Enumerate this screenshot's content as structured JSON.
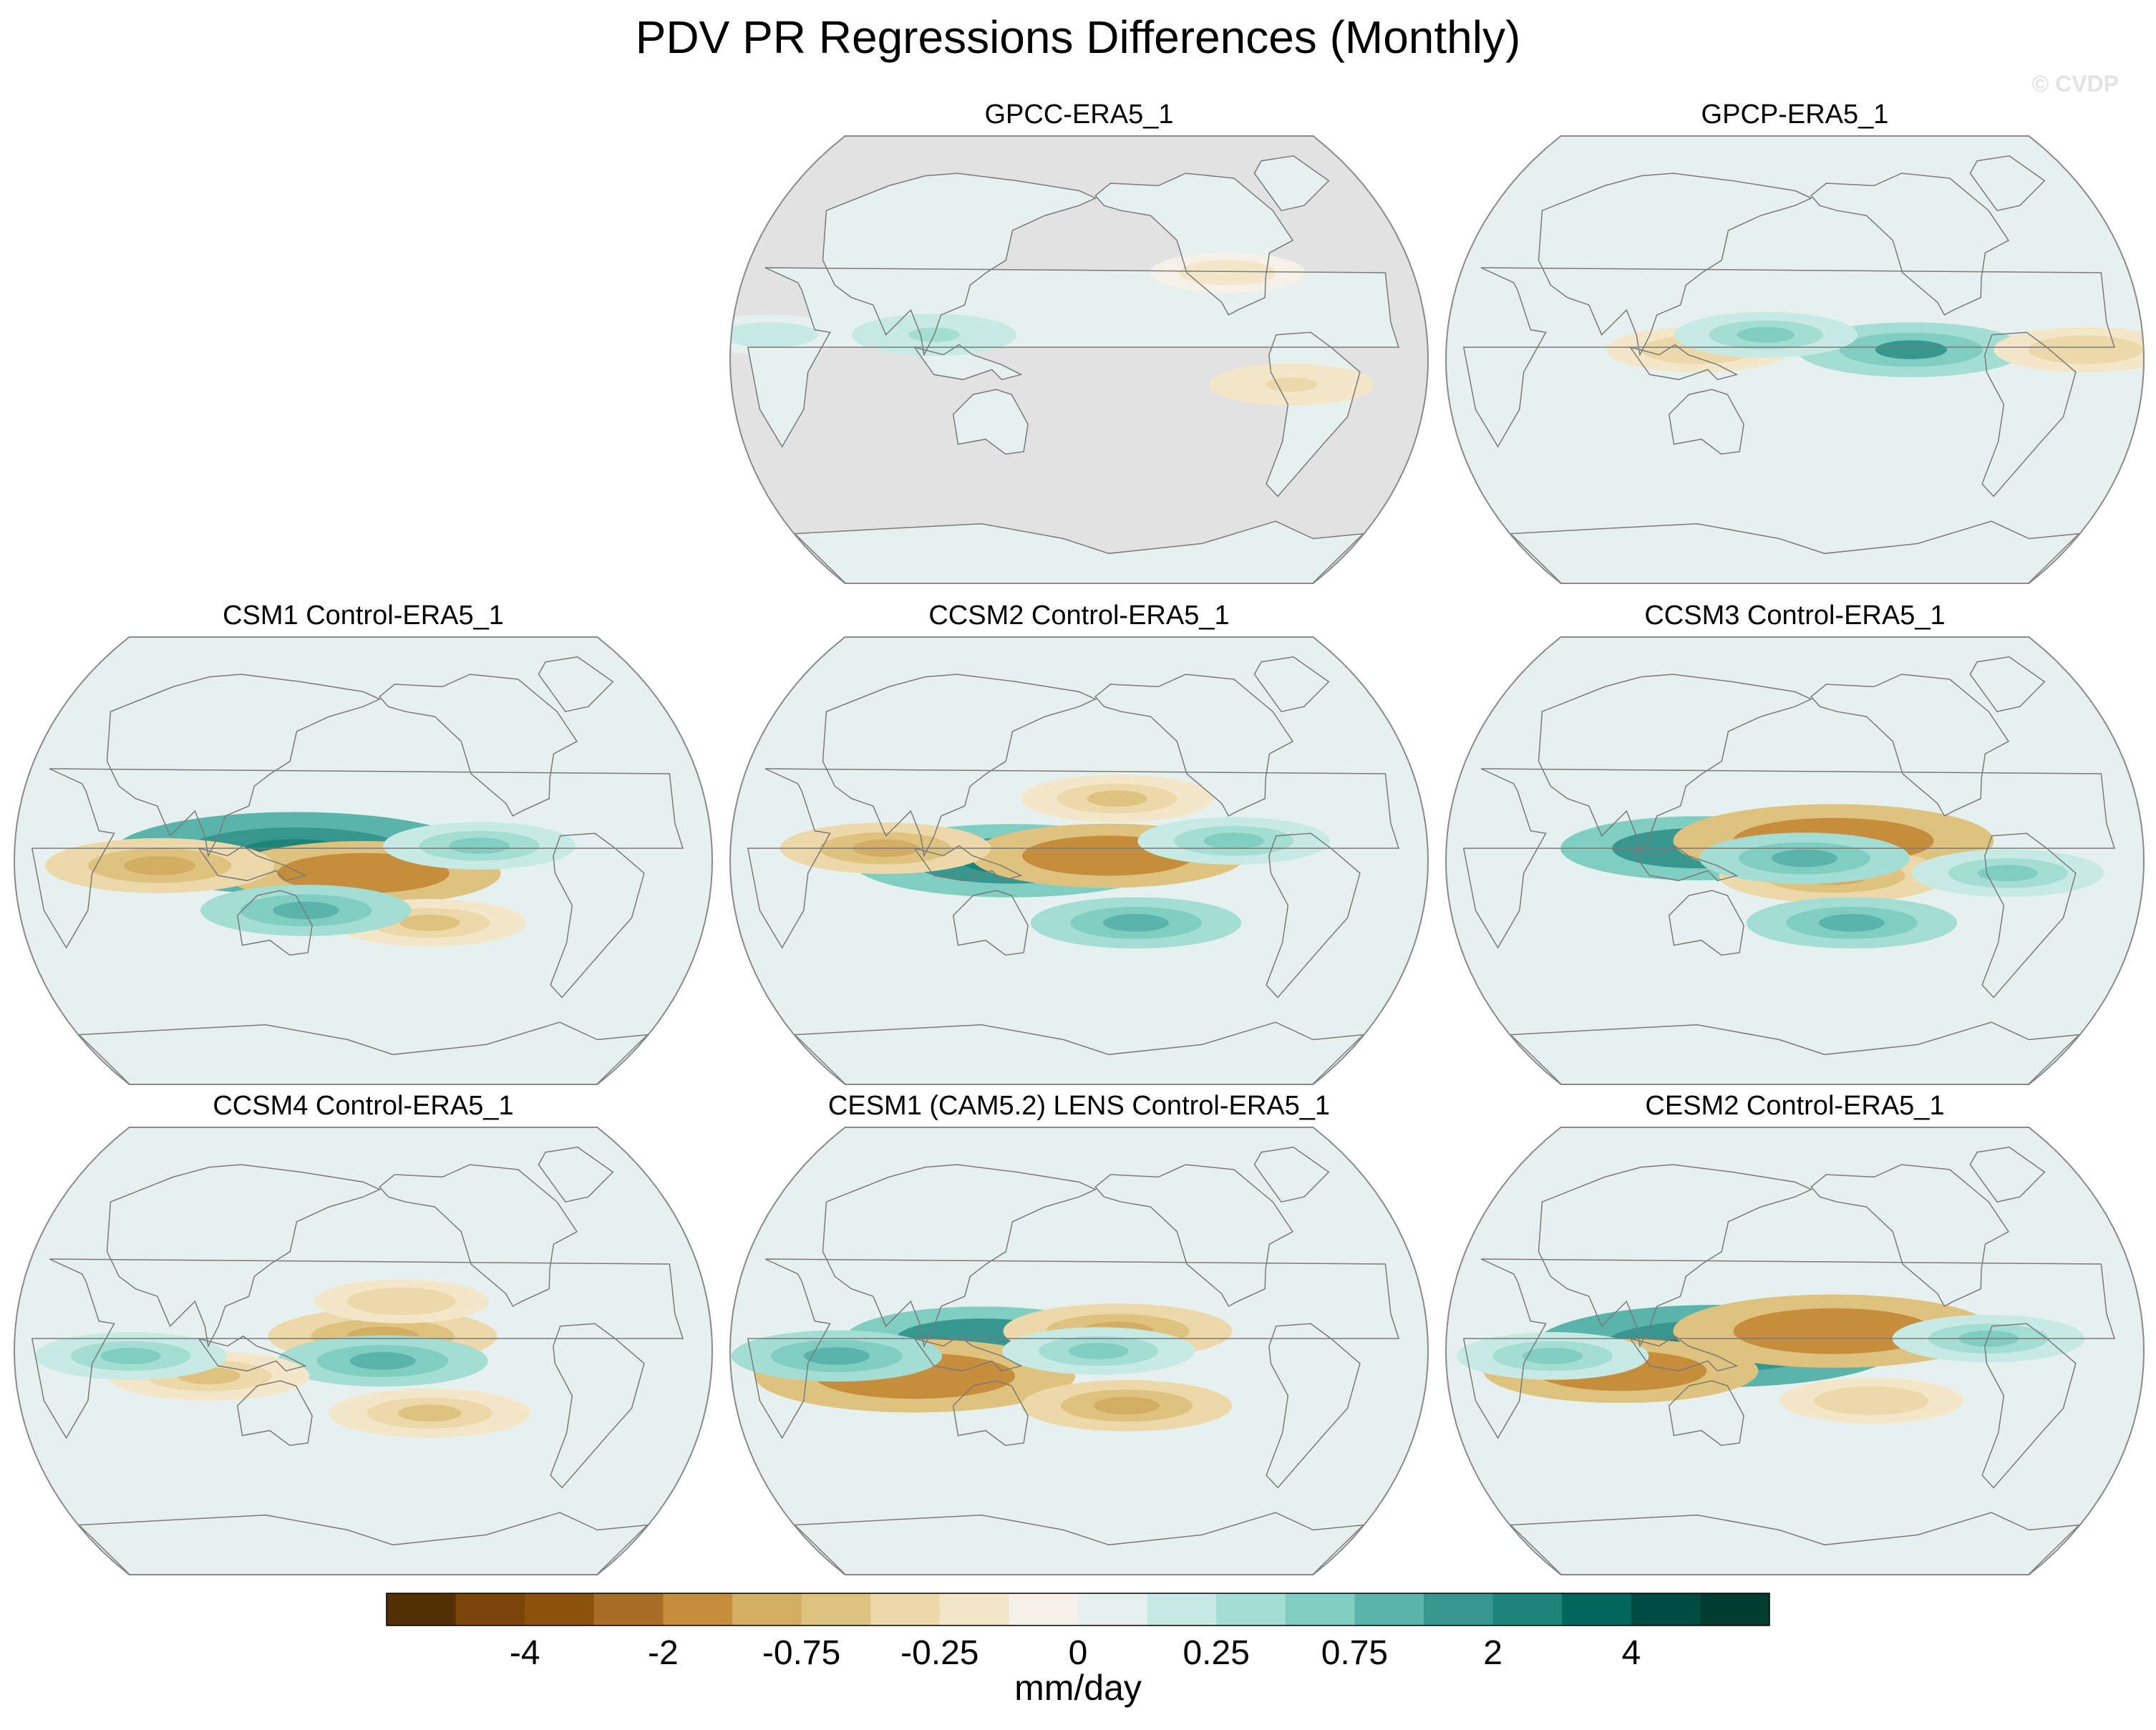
{
  "chart_data": {
    "type": "heatmap",
    "projection": "Robinson, centered on the Pacific",
    "title": "PDV PR Regressions Differences (Monthly)",
    "watermark": "© CVDP",
    "units": "mm/day",
    "missing_color": "#e2e2e2",
    "colorbar": {
      "boundaries": [
        -5,
        -4,
        -3,
        -2,
        -1,
        -0.75,
        -0.5,
        -0.25,
        -0.1,
        0,
        0.1,
        0.25,
        0.5,
        0.75,
        1,
        2,
        3,
        4,
        5
      ],
      "tick_labels": [
        "-4",
        "-2",
        "-0.75",
        "-0.25",
        "0",
        "0.25",
        "0.75",
        "2",
        "4"
      ],
      "tick_values": [
        -4,
        -2,
        -0.75,
        -0.25,
        0,
        0.25,
        0.75,
        2,
        4
      ],
      "colors": [
        "#543005",
        "#7a4508",
        "#8c510a",
        "#a96e26",
        "#c68d3c",
        "#d4ad64",
        "#dfc27d",
        "#edd8a9",
        "#f4e6c8",
        "#f5f1e8",
        "#e6f1ef",
        "#c7eae5",
        "#a3ddd3",
        "#80cdc1",
        "#5ab4ac",
        "#35978f",
        "#1d8479",
        "#01665e",
        "#004c42",
        "#003c30"
      ]
    },
    "panels": [
      {
        "name": "GPCC-ERA5_1",
        "land_only": true,
        "features": [
          {
            "lon": 105,
            "lat": 10,
            "value": 0.3
          },
          {
            "lon": 290,
            "lat": -10,
            "value": -0.3
          },
          {
            "lon": 20,
            "lat": 10,
            "value": 0.2
          },
          {
            "lon": 260,
            "lat": 35,
            "value": -0.2
          }
        ]
      },
      {
        "name": "GPCP-ERA5_1",
        "land_only": false,
        "features": [
          {
            "lon": 240,
            "lat": 4,
            "value": 1.0
          },
          {
            "lon": 130,
            "lat": 4,
            "value": -0.5
          },
          {
            "lon": 165,
            "lat": 10,
            "value": 0.5
          },
          {
            "lon": 330,
            "lat": 4,
            "value": -0.5
          }
        ]
      },
      {
        "name": "CSM1 Control-ERA5_1",
        "land_only": false,
        "features": [
          {
            "lon": 145,
            "lat": 3,
            "value": 2.5
          },
          {
            "lon": 180,
            "lat": -5,
            "value": -1.5
          },
          {
            "lon": 75,
            "lat": -2,
            "value": -1.0
          },
          {
            "lon": 215,
            "lat": -25,
            "value": -0.6
          },
          {
            "lon": 150,
            "lat": -20,
            "value": 0.8
          },
          {
            "lon": 240,
            "lat": 6,
            "value": 0.6
          }
        ]
      },
      {
        "name": "CCSM2 Control-ERA5_1",
        "land_only": false,
        "features": [
          {
            "lon": 145,
            "lat": 0,
            "value": 2.0
          },
          {
            "lon": 195,
            "lat": 2,
            "value": -1.5
          },
          {
            "lon": 80,
            "lat": 5,
            "value": -0.8
          },
          {
            "lon": 210,
            "lat": -25,
            "value": 0.8
          },
          {
            "lon": 200,
            "lat": 25,
            "value": -0.6
          },
          {
            "lon": 260,
            "lat": 8,
            "value": 0.6
          }
        ]
      },
      {
        "name": "CCSM3 Control-ERA5_1",
        "land_only": false,
        "features": [
          {
            "lon": 130,
            "lat": 5,
            "value": 1.5
          },
          {
            "lon": 200,
            "lat": 8,
            "value": -2.0
          },
          {
            "lon": 200,
            "lat": -6,
            "value": -1.0
          },
          {
            "lon": 185,
            "lat": 1,
            "value": 0.8
          },
          {
            "lon": 210,
            "lat": -25,
            "value": 0.8
          },
          {
            "lon": 290,
            "lat": -5,
            "value": 0.6
          }
        ]
      },
      {
        "name": "CCSM4 Control-ERA5_1",
        "land_only": false,
        "features": [
          {
            "lon": 190,
            "lat": 6,
            "value": -1.0
          },
          {
            "lon": 190,
            "lat": -4,
            "value": 0.8
          },
          {
            "lon": 100,
            "lat": -10,
            "value": -0.7
          },
          {
            "lon": 60,
            "lat": -2,
            "value": 0.6
          },
          {
            "lon": 200,
            "lat": 20,
            "value": -0.4
          },
          {
            "lon": 215,
            "lat": -25,
            "value": -0.7
          }
        ]
      },
      {
        "name": "CESM1 (CAM5.2) LENS Control-ERA5_1",
        "land_only": false,
        "features": [
          {
            "lon": 130,
            "lat": 5,
            "value": 1.5
          },
          {
            "lon": 95,
            "lat": -10,
            "value": -2.0
          },
          {
            "lon": 55,
            "lat": -2,
            "value": 0.8
          },
          {
            "lon": 200,
            "lat": 8,
            "value": -1.0
          },
          {
            "lon": 205,
            "lat": -22,
            "value": -0.8
          },
          {
            "lon": 190,
            "lat": 0,
            "value": 0.6
          }
        ]
      },
      {
        "name": "CESM2 Control-ERA5_1",
        "land_only": false,
        "features": [
          {
            "lon": 140,
            "lat": 2,
            "value": 2.5
          },
          {
            "lon": 200,
            "lat": 8,
            "value": -2.0
          },
          {
            "lon": 90,
            "lat": -8,
            "value": -1.5
          },
          {
            "lon": 55,
            "lat": -2,
            "value": 0.6
          },
          {
            "lon": 220,
            "lat": -20,
            "value": -0.5
          },
          {
            "lon": 280,
            "lat": 5,
            "value": 0.6
          }
        ]
      }
    ]
  }
}
